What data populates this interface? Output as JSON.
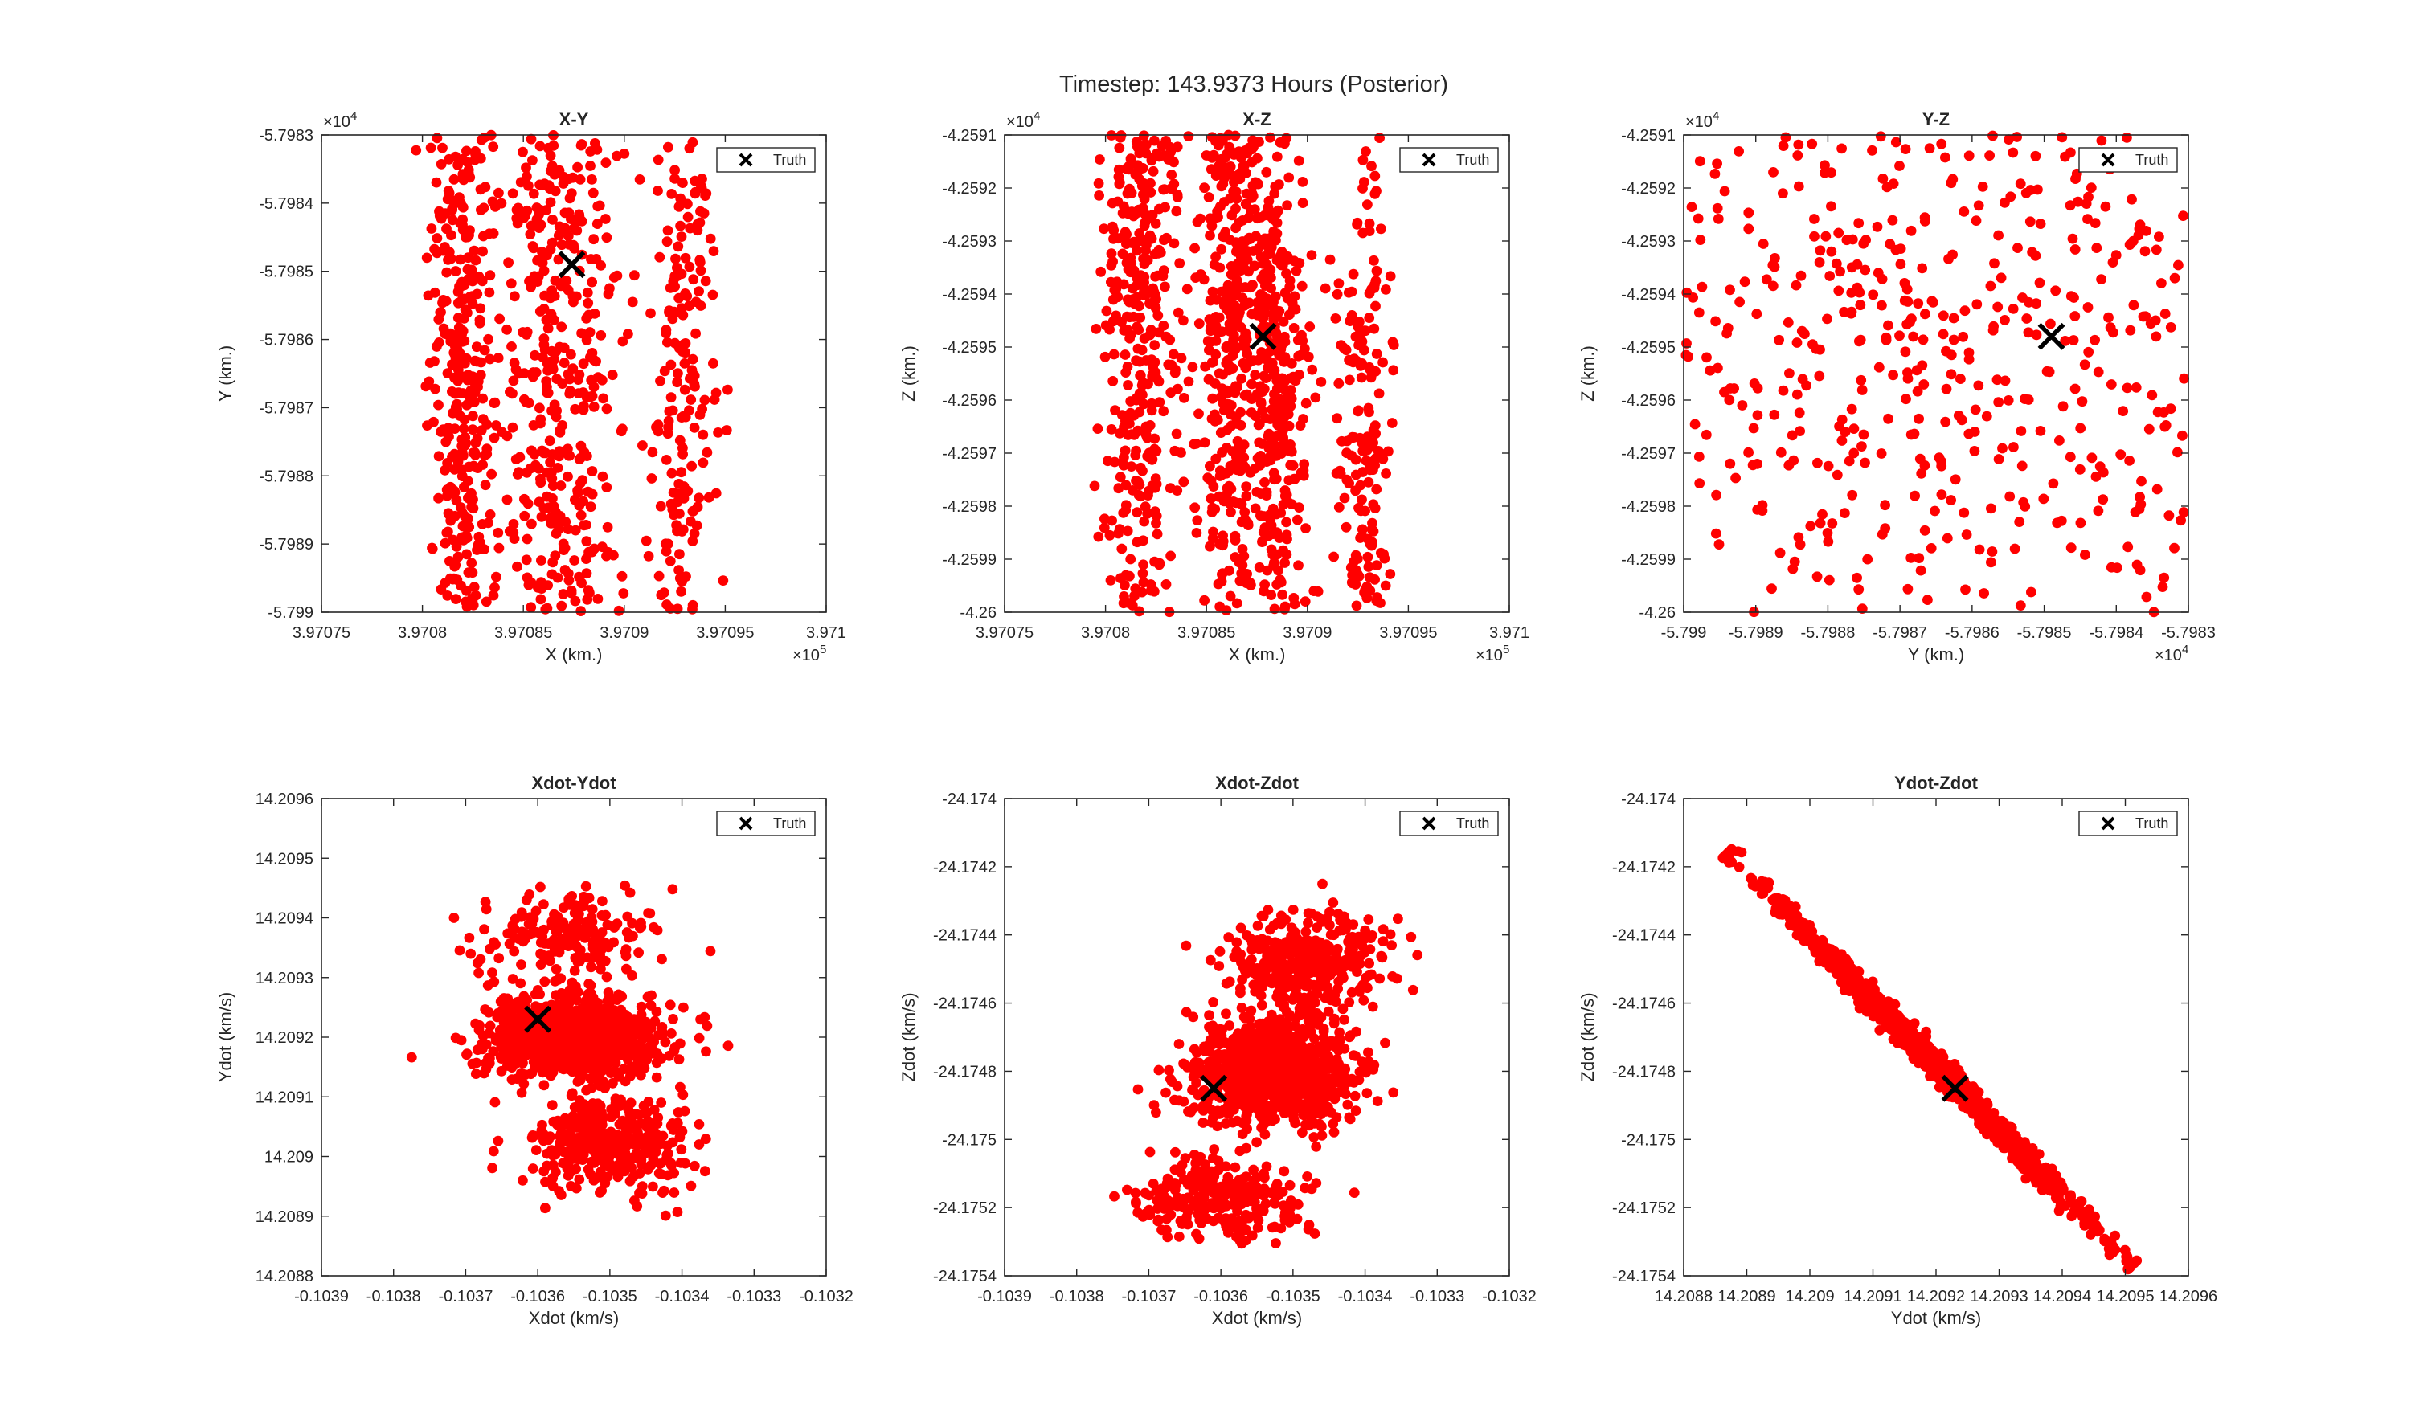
{
  "figure": {
    "title": "Timestep: 143.9373 Hours (Posterior)"
  },
  "colors": {
    "samples": "#ff0000",
    "truth": "#000000",
    "axes": "#262626",
    "background": "#ffffff"
  },
  "legend_label": "Truth",
  "chart_data": [
    {
      "type": "scatter",
      "title": "X-Y",
      "xlabel": "X (km.)",
      "ylabel": "Y (km.)",
      "xlim": [
        3.97075,
        3.971
      ],
      "ylim": [
        -5.799,
        -5.7983
      ],
      "xticks": [
        "3.97075",
        "3.9708",
        "3.97085",
        "3.9709",
        "3.97095",
        "3.971"
      ],
      "yticks": [
        "-5.799",
        "-5.7989",
        "-5.7988",
        "-5.7987",
        "-5.7986",
        "-5.7985",
        "-5.7984",
        "-5.7983"
      ],
      "xexp": "5",
      "yexp": "4",
      "truth": [
        3.970874,
        -5.79849
      ],
      "legend": "top-right",
      "clusters": [
        {
          "cx": 3.970868,
          "cy": -5.79869,
          "sx": 1.45e-05,
          "sy": 0.00063,
          "n": 900
        },
        {
          "cx": 3.97082,
          "cy": -5.79866,
          "sx": 8.5e-06,
          "sy": 0.00038,
          "n": 500
        },
        {
          "cx": 3.97093,
          "cy": -5.79867,
          "sx": 8.5e-06,
          "sy": 0.00033,
          "n": 260
        }
      ]
    },
    {
      "type": "scatter",
      "title": "X-Z",
      "xlabel": "X (km.)",
      "ylabel": "Z (km.)",
      "xlim": [
        3.97075,
        3.971
      ],
      "ylim": [
        -4.26,
        -4.2591
      ],
      "xticks": [
        "3.97075",
        "3.9708",
        "3.97085",
        "3.9709",
        "3.97095",
        "3.971"
      ],
      "yticks": [
        "-4.26",
        "-4.2599",
        "-4.2598",
        "-4.2597",
        "-4.2596",
        "-4.2595",
        "-4.2594",
        "-4.2593",
        "-4.2592",
        "-4.2591"
      ],
      "xexp": "5",
      "yexp": "4",
      "truth": [
        3.970878,
        -4.25948
      ],
      "legend": "top-right",
      "clusters": [
        {
          "cx": 3.970818,
          "cy": -4.25936,
          "sx": 9.5e-06,
          "sy": 0.00042,
          "n": 520
        },
        {
          "cx": 3.970862,
          "cy": -4.25942,
          "sx": 8.5e-06,
          "sy": 0.00038,
          "n": 500
        },
        {
          "cx": 3.970885,
          "cy": -4.25955,
          "sx": 7.5e-06,
          "sy": 0.00035,
          "n": 380
        },
        {
          "cx": 3.970928,
          "cy": -4.25975,
          "sx": 7.5e-06,
          "sy": 0.00038,
          "n": 240
        }
      ]
    },
    {
      "type": "scatter",
      "title": "Y-Z",
      "xlabel": "Y (km.)",
      "ylabel": "Z (km.)",
      "xlim": [
        -5.799,
        -5.7983
      ],
      "ylim": [
        -4.26,
        -4.2591
      ],
      "xticks": [
        "-5.799",
        "-5.7989",
        "-5.7988",
        "-5.7987",
        "-5.7986",
        "-5.7985",
        "-5.7984",
        "-5.7983"
      ],
      "yticks": [
        "-4.26",
        "-4.2599",
        "-4.2598",
        "-4.2597",
        "-4.2596",
        "-4.2595",
        "-4.2594",
        "-4.2593",
        "-4.2592",
        "-4.2591"
      ],
      "xexp": "4",
      "yexp": "4",
      "truth": [
        -5.79849,
        -4.25948
      ],
      "legend": "top-right",
      "clusters": [
        {
          "cx": -5.79867,
          "cy": -4.2595,
          "sx": 0.00058,
          "sy": 0.00048,
          "n": 1450
        }
      ]
    },
    {
      "type": "scatter",
      "title": "Xdot-Ydot",
      "xlabel": "Xdot (km/s)",
      "ylabel": "Ydot (km/s)",
      "xlim": [
        -0.1039,
        -0.1032
      ],
      "ylim": [
        14.2088,
        14.2096
      ],
      "xticks": [
        "-0.1039",
        "-0.1038",
        "-0.1037",
        "-0.1036",
        "-0.1035",
        "-0.1034",
        "-0.1033",
        "-0.1032"
      ],
      "yticks": [
        "14.2088",
        "14.2089",
        "14.209",
        "14.2091",
        "14.2092",
        "14.2093",
        "14.2094",
        "14.2095",
        "14.2096"
      ],
      "xexp": "",
      "yexp": "",
      "truth": [
        -0.1036,
        14.20923
      ],
      "legend": "top-right",
      "clusters": [
        {
          "cx": -0.10355,
          "cy": 14.2092,
          "sx": 6e-05,
          "sy": 3.5e-05,
          "n": 950
        },
        {
          "cx": -0.10356,
          "cy": 14.20937,
          "sx": 6e-05,
          "sy": 3.5e-05,
          "n": 200
        },
        {
          "cx": -0.1035,
          "cy": 14.20902,
          "sx": 6e-05,
          "sy": 4e-05,
          "n": 360
        }
      ]
    },
    {
      "type": "scatter",
      "title": "Xdot-Zdot",
      "xlabel": "Xdot (km/s)",
      "ylabel": "Zdot (km/s)",
      "xlim": [
        -0.1039,
        -0.1032
      ],
      "ylim": [
        -24.1754,
        -24.174
      ],
      "xticks": [
        "-0.1039",
        "-0.1038",
        "-0.1037",
        "-0.1036",
        "-0.1035",
        "-0.1034",
        "-0.1033",
        "-0.1032"
      ],
      "yticks": [
        "-24.1754",
        "-24.1752",
        "-24.175",
        "-24.1748",
        "-24.1746",
        "-24.1744",
        "-24.1742",
        "-24.174"
      ],
      "xexp": "",
      "yexp": "",
      "truth": [
        -0.10361,
        -24.17485
      ],
      "legend": "top-right",
      "clusters": [
        {
          "cx": -0.10353,
          "cy": -24.1748,
          "sx": 6e-05,
          "sy": 8e-05,
          "n": 900
        },
        {
          "cx": -0.10348,
          "cy": -24.17448,
          "sx": 5e-05,
          "sy": 7e-05,
          "n": 380
        },
        {
          "cx": -0.1036,
          "cy": -24.17518,
          "sx": 6e-05,
          "sy": 6e-05,
          "n": 260
        }
      ]
    },
    {
      "type": "scatter",
      "title": "Ydot-Zdot",
      "xlabel": "Ydot (km/s)",
      "ylabel": "Zdot (km/s)",
      "xlim": [
        14.2088,
        14.2096
      ],
      "ylim": [
        -24.1754,
        -24.174
      ],
      "xticks": [
        "14.2088",
        "14.2089",
        "14.209",
        "14.2091",
        "14.2092",
        "14.2093",
        "14.2094",
        "14.2095",
        "14.2096"
      ],
      "yticks": [
        "-24.1754",
        "-24.1752",
        "-24.175",
        "-24.1748",
        "-24.1746",
        "-24.1744",
        "-24.1742",
        "-24.174"
      ],
      "xexp": "",
      "yexp": "",
      "truth": [
        14.20923,
        -24.17485
      ],
      "legend": "top-right",
      "line": {
        "x0": 14.20887,
        "y0": -24.17416,
        "x1": 14.20951,
        "y1": -24.17537,
        "n": 1300,
        "spread": 0.3
      }
    }
  ]
}
